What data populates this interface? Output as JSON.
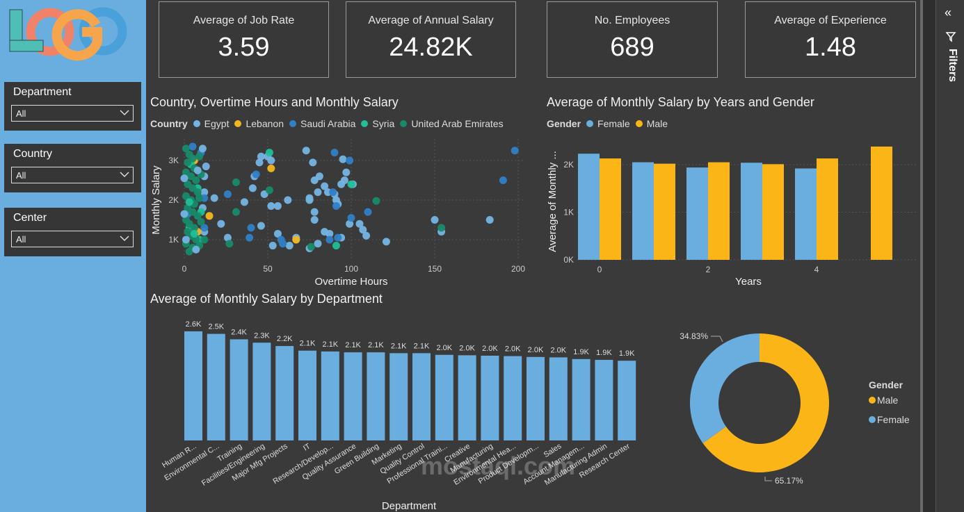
{
  "sidebar": {
    "logo_text": "LOGO",
    "slicers": [
      {
        "label": "Department",
        "value": "All"
      },
      {
        "label": "Country",
        "value": "All"
      },
      {
        "label": "Center",
        "value": "All"
      }
    ]
  },
  "kpis": [
    {
      "title": "Average of Job Rate",
      "value": "3.59"
    },
    {
      "title": "Average of Annual Salary",
      "value": "24.82K"
    },
    {
      "title": "No. Employees",
      "value": "689"
    },
    {
      "title": "Average of Experience",
      "value": "1.48"
    }
  ],
  "filters_pane": {
    "label": "Filters"
  },
  "watermark": "mostaql.com",
  "colors": {
    "egypt": "#74b4e2",
    "lebanon": "#f2b620",
    "saudi": "#3080c6",
    "syria": "#1fbf98",
    "uae": "#178a6a",
    "female": "#6aaee0",
    "male": "#fbb516"
  },
  "chart_data": [
    {
      "type": "scatter",
      "title": "Country, Overtime Hours and Monthly Salary",
      "legend_title": "Country",
      "legend": [
        "Egypt",
        "Lebanon",
        "Saudi Arabia",
        "Syria",
        "United Arab Emirates"
      ],
      "xlabel": "Overtime Hours",
      "ylabel": "Monthly Salary",
      "xticks": [
        "0",
        "50",
        "100",
        "150",
        "200"
      ],
      "yticks": [
        "1K",
        "2K",
        "3K"
      ],
      "xlim": [
        0,
        200
      ],
      "ylim": [
        550,
        3500
      ],
      "points": [
        [
          73,
          3250,
          0
        ],
        [
          95,
          3030,
          0
        ],
        [
          52,
          3000,
          0
        ],
        [
          50,
          3100,
          0
        ],
        [
          45,
          2950,
          0
        ],
        [
          46,
          3100,
          0
        ],
        [
          77,
          2950,
          0
        ],
        [
          42,
          2600,
          0
        ],
        [
          41,
          2300,
          0
        ],
        [
          78,
          2500,
          0
        ],
        [
          101,
          2400,
          0
        ],
        [
          94,
          2400,
          0
        ],
        [
          96,
          2500,
          0
        ],
        [
          97,
          2700,
          0
        ],
        [
          81,
          2600,
          0
        ],
        [
          84,
          2350,
          0
        ],
        [
          80,
          2200,
          0
        ],
        [
          86,
          2200,
          0
        ],
        [
          90,
          2150,
          0
        ],
        [
          48,
          2150,
          0
        ],
        [
          52,
          1850,
          0
        ],
        [
          62,
          2000,
          0
        ],
        [
          75,
          2050,
          0
        ],
        [
          92,
          1900,
          0
        ],
        [
          75,
          2000,
          0
        ],
        [
          91,
          2000,
          0
        ],
        [
          18,
          2050,
          0
        ],
        [
          36,
          1950,
          0
        ],
        [
          56,
          1850,
          0
        ],
        [
          78,
          1700,
          0
        ],
        [
          78,
          1500,
          0
        ],
        [
          99,
          1400,
          0
        ],
        [
          105,
          1400,
          0
        ],
        [
          107,
          1250,
          0
        ],
        [
          150,
          1500,
          0
        ],
        [
          183,
          1500,
          0
        ],
        [
          154,
          1200,
          0
        ],
        [
          22,
          1400,
          0
        ],
        [
          46,
          1350,
          0
        ],
        [
          56,
          1150,
          0
        ],
        [
          26,
          1050,
          0
        ],
        [
          84,
          1200,
          0
        ],
        [
          87,
          1150,
          0
        ],
        [
          109,
          1100,
          0
        ],
        [
          67,
          1050,
          0
        ],
        [
          67,
          1000,
          0
        ],
        [
          94,
          1050,
          0
        ],
        [
          53,
          850,
          0
        ],
        [
          63,
          850,
          0
        ],
        [
          80,
          900,
          0
        ],
        [
          75,
          780,
          0
        ],
        [
          121,
          950,
          0
        ],
        [
          12,
          2200,
          0
        ],
        [
          12,
          2600,
          0
        ],
        [
          13,
          2850,
          0
        ],
        [
          11,
          1800,
          0
        ],
        [
          12,
          1200,
          0
        ],
        [
          90,
          3200,
          2
        ],
        [
          99,
          3000,
          2
        ],
        [
          198,
          3250,
          2
        ],
        [
          191,
          2500,
          2
        ],
        [
          43,
          2650,
          2
        ],
        [
          26,
          2150,
          2
        ],
        [
          89,
          2200,
          2
        ],
        [
          91,
          1850,
          2
        ],
        [
          110,
          1700,
          2
        ],
        [
          100,
          1550,
          2
        ],
        [
          40,
          1300,
          2
        ],
        [
          39,
          1050,
          2
        ],
        [
          92,
          1050,
          2
        ],
        [
          87,
          1000,
          2
        ],
        [
          58,
          1000,
          2
        ],
        [
          59,
          900,
          2
        ],
        [
          12,
          2050,
          2
        ],
        [
          12,
          1300,
          2
        ],
        [
          10,
          3200,
          2
        ],
        [
          2,
          1650,
          2
        ],
        [
          5,
          3350,
          2
        ],
        [
          52,
          2800,
          1
        ],
        [
          67,
          1000,
          1
        ],
        [
          15,
          1600,
          1
        ],
        [
          6,
          3000,
          1
        ],
        [
          8,
          1200,
          1
        ],
        [
          51,
          3200,
          3
        ],
        [
          100,
          2400,
          3
        ],
        [
          91,
          850,
          3
        ],
        [
          4,
          2900,
          3
        ],
        [
          8,
          2300,
          3
        ],
        [
          10,
          1700,
          3
        ],
        [
          9,
          1000,
          3
        ],
        [
          3,
          1300,
          3
        ],
        [
          51,
          2250,
          4
        ],
        [
          31,
          2450,
          4
        ],
        [
          115,
          1980,
          4
        ],
        [
          31,
          1700,
          4
        ],
        [
          154,
          1300,
          4
        ],
        [
          27,
          900,
          4
        ],
        [
          76,
          820,
          4
        ],
        [
          12,
          1000,
          4
        ],
        [
          1,
          3300,
          4
        ],
        [
          3,
          3150,
          4
        ],
        [
          5,
          3050,
          4
        ],
        [
          2,
          2950,
          4
        ],
        [
          6,
          2800,
          4
        ],
        [
          1,
          2700,
          4
        ],
        [
          4,
          2600,
          4
        ],
        [
          7,
          2500,
          4
        ],
        [
          2,
          2400,
          4
        ],
        [
          5,
          2300,
          4
        ],
        [
          8,
          2200,
          4
        ],
        [
          1,
          2100,
          4
        ],
        [
          4,
          2000,
          4
        ],
        [
          6,
          1900,
          4
        ],
        [
          2,
          1800,
          4
        ],
        [
          5,
          1700,
          4
        ],
        [
          8,
          1600,
          4
        ],
        [
          1,
          1500,
          4
        ],
        [
          3,
          1400,
          4
        ],
        [
          6,
          1300,
          4
        ],
        [
          2,
          1200,
          4
        ],
        [
          4,
          1100,
          4
        ],
        [
          7,
          1000,
          4
        ],
        [
          1,
          900,
          4
        ],
        [
          5,
          800,
          4
        ],
        [
          3,
          700,
          4
        ],
        [
          9,
          3100,
          4
        ],
        [
          10,
          2650,
          4
        ],
        [
          9,
          2050,
          4
        ],
        [
          10,
          1450,
          4
        ],
        [
          9,
          850,
          4
        ],
        [
          0,
          2550,
          0
        ],
        [
          0,
          1650,
          0
        ],
        [
          7,
          750,
          0
        ],
        [
          11,
          3300,
          0
        ],
        [
          3,
          1950,
          3
        ],
        [
          6,
          1150,
          3
        ],
        [
          8,
          2750,
          0
        ],
        [
          1,
          1000,
          0
        ]
      ]
    },
    {
      "type": "bar",
      "title": "Average of Monthly Salary by Years and Gender",
      "legend_title": "Gender",
      "legend": [
        "Female",
        "Male"
      ],
      "xlabel": "Years",
      "ylabel": "Average of Monthly ...",
      "categories": [
        0,
        1,
        2,
        3,
        4,
        5
      ],
      "xticks": [
        "0",
        "2",
        "4"
      ],
      "yticks": [
        "0K",
        "1K",
        "2K"
      ],
      "ylim": [
        0,
        2600
      ],
      "series": [
        {
          "name": "Female",
          "values": [
            2230,
            2050,
            1940,
            2040,
            1920,
            null
          ]
        },
        {
          "name": "Male",
          "values": [
            2130,
            2020,
            2050,
            2010,
            2130,
            2380
          ]
        }
      ]
    },
    {
      "type": "bar",
      "title": "Average of Monthly Salary by Department",
      "xlabel": "Department",
      "ylim": [
        0,
        2600
      ],
      "categories": [
        "Human R...",
        "Environmental C...",
        "Training",
        "Facilities/Engineering",
        "Major Mfg Projects",
        "IT",
        "Research/Develop...",
        "Quality Assurance",
        "Green Building",
        "Marketing",
        "Quality Control",
        "Professional Traini...",
        "Creative",
        "Manufacturing",
        "Environmental Hea...",
        "Product Developm...",
        "Sales",
        "Account Managem...",
        "Manufacturing Admin",
        "Research Center"
      ],
      "values": [
        2600,
        2540,
        2410,
        2330,
        2250,
        2140,
        2120,
        2100,
        2100,
        2080,
        2080,
        2040,
        2030,
        2020,
        2010,
        1990,
        1980,
        1940,
        1920,
        1900
      ],
      "labels": [
        "2.6K",
        "2.5K",
        "2.4K",
        "2.3K",
        "2.2K",
        "2.1K",
        "2.1K",
        "2.1K",
        "2.1K",
        "2.1K",
        "2.1K",
        "2.0K",
        "2.0K",
        "2.0K",
        "2.0K",
        "2.0K",
        "2.0K",
        "1.9K",
        "1.9K",
        "1.9K"
      ]
    },
    {
      "type": "pie",
      "donut": true,
      "legend_title": "Gender",
      "legend": [
        "Male",
        "Female"
      ],
      "values": [
        65.17,
        34.83
      ],
      "labels": [
        "65.17%",
        "34.83%"
      ]
    }
  ]
}
